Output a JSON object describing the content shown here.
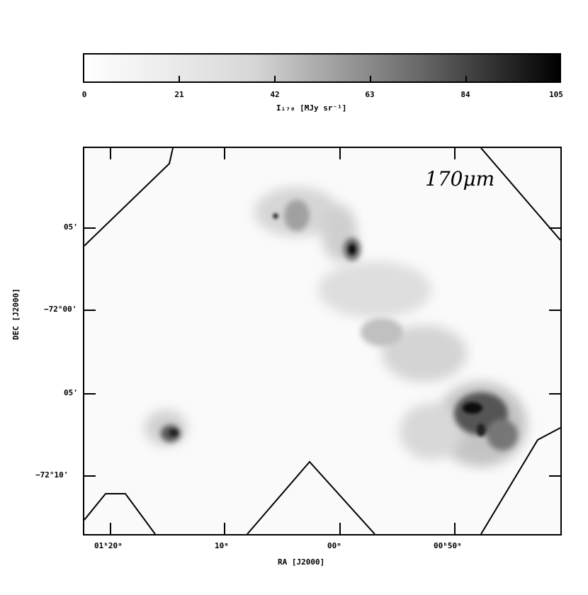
{
  "colorbar": {
    "tick_labels": [
      "0",
      "21",
      "42",
      "63",
      "84",
      "105"
    ],
    "label": "I₁₇₀ [MJy sr⁻¹]"
  },
  "map": {
    "band_label": "170μm",
    "y_axis": {
      "title": "DEC [J2000]",
      "tick_labels": [
        "05'",
        "−72°00'",
        "05'",
        "−72°10'"
      ]
    },
    "x_axis": {
      "title": "RA [J2000]",
      "tick_labels": [
        "01ʰ20ᵐ",
        "10ᵐ",
        "00ᵐ",
        "00ʰ50ᵐ"
      ]
    }
  }
}
